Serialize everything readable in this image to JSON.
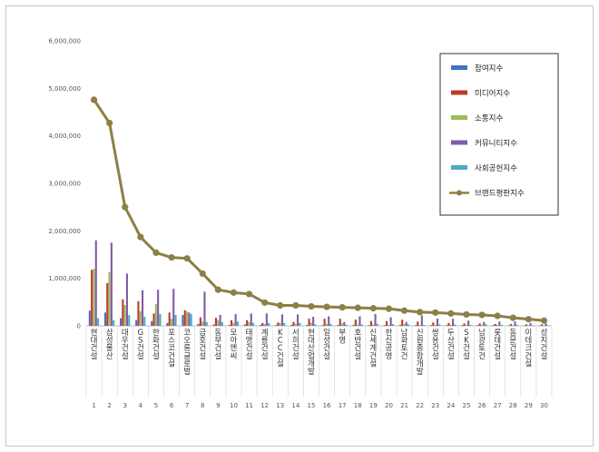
{
  "chart_data": {
    "type": "bar+line",
    "ylim": [
      0,
      6000000
    ],
    "y_ticks": [
      "6,000,000",
      "5,000,000",
      "4,000,000",
      "3,000,000",
      "2,000,000",
      "1,000,000",
      "0"
    ],
    "categories": [
      "현대건설",
      "삼성물산",
      "대우건설",
      "GS건설",
      "한화건설",
      "포스코건설",
      "코오롱글로벌",
      "금호건설",
      "동부건설",
      "모아엔씨",
      "태영건설",
      "계룡건설",
      "KCC건설",
      "서희건설",
      "현대산업개발",
      "일성건설",
      "부영",
      "호반건설",
      "신세계건설",
      "한신공영",
      "남화토건",
      "신원종합개발",
      "쌍용건설",
      "두산건설",
      "SK건설",
      "남광토건",
      "롯데건설",
      "동문건설",
      "이테크건설",
      "성지건설"
    ],
    "ranks": [
      "1",
      "2",
      "3",
      "4",
      "5",
      "6",
      "7",
      "8",
      "9",
      "10",
      "11",
      "12",
      "13",
      "14",
      "15",
      "16",
      "17",
      "18",
      "19",
      "20",
      "21",
      "22",
      "23",
      "24",
      "25",
      "26",
      "27",
      "28",
      "29",
      "30"
    ],
    "legend_position": "top-right",
    "series": [
      {
        "name": "참여지수",
        "type": "bar",
        "color": "#4472c4",
        "values": [
          320000,
          280000,
          160000,
          120000,
          100000,
          60000,
          230000,
          40000,
          30000,
          20000,
          30000,
          20000,
          15000,
          20000,
          20000,
          15000,
          20000,
          20000,
          15000,
          15000,
          20000,
          15000,
          15000,
          15000,
          15000,
          15000,
          15000,
          10000,
          10000,
          10000
        ]
      },
      {
        "name": "미디어지수",
        "type": "bar",
        "color": "#c0392b",
        "values": [
          1180000,
          900000,
          560000,
          520000,
          260000,
          280000,
          330000,
          180000,
          170000,
          120000,
          120000,
          60000,
          70000,
          80000,
          150000,
          150000,
          150000,
          130000,
          100000,
          100000,
          130000,
          90000,
          70000,
          60000,
          50000,
          50000,
          40000,
          40000,
          30000,
          30000
        ]
      },
      {
        "name": "소통지수",
        "type": "bar",
        "color": "#9bbb59",
        "values": [
          1200000,
          1130000,
          440000,
          310000,
          460000,
          150000,
          300000,
          90000,
          120000,
          60000,
          80000,
          40000,
          60000,
          40000,
          70000,
          40000,
          50000,
          30000,
          30000,
          20000,
          40000,
          20000,
          20000,
          20000,
          20000,
          20000,
          20000,
          15000,
          15000,
          15000
        ]
      },
      {
        "name": "커뮤니티지수",
        "type": "bar",
        "color": "#7f5ca8",
        "values": [
          1800000,
          1750000,
          1100000,
          750000,
          760000,
          780000,
          280000,
          720000,
          230000,
          250000,
          260000,
          260000,
          240000,
          240000,
          190000,
          200000,
          80000,
          200000,
          250000,
          180000,
          80000,
          220000,
          150000,
          150000,
          110000,
          80000,
          90000,
          90000,
          60000,
          50000
        ]
      },
      {
        "name": "사회공헌지수",
        "type": "bar",
        "color": "#4bacc6",
        "values": [
          160000,
          120000,
          230000,
          190000,
          250000,
          230000,
          250000,
          80000,
          80000,
          90000,
          60000,
          60000,
          60000,
          60000,
          30000,
          40000,
          20000,
          30000,
          40000,
          40000,
          30000,
          20000,
          30000,
          30000,
          20000,
          30000,
          20000,
          20000,
          10000,
          10000
        ]
      },
      {
        "name": "브랜드평판지수",
        "type": "line",
        "color": "#8c8046",
        "values": [
          4760000,
          4270000,
          2500000,
          1870000,
          1540000,
          1440000,
          1420000,
          1100000,
          760000,
          700000,
          670000,
          490000,
          430000,
          430000,
          410000,
          400000,
          390000,
          380000,
          370000,
          360000,
          320000,
          290000,
          280000,
          260000,
          240000,
          230000,
          210000,
          170000,
          140000,
          110000
        ]
      }
    ]
  }
}
